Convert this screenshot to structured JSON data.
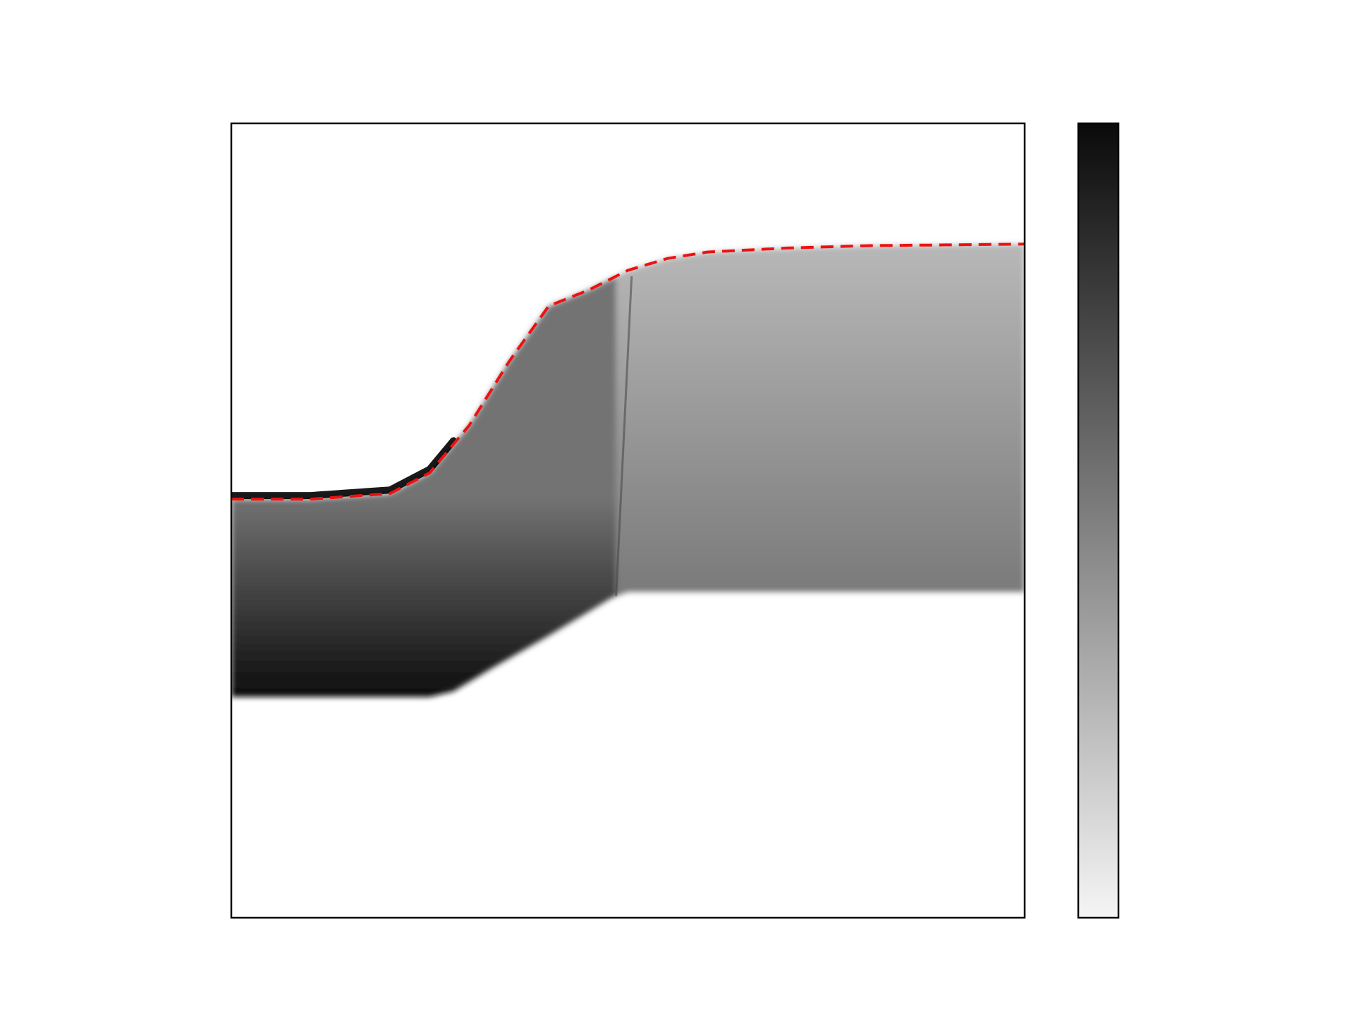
{
  "chart_data": {
    "type": "heatmap",
    "title": "",
    "xlabel": "",
    "ylabel": "",
    "axis_ticks_visible": false,
    "grid": false,
    "colormap": "grey",
    "colorbar": {
      "present": true,
      "tick_labels_visible": false,
      "low_color": "#f5f5f5",
      "high_color": "#0a0a0a"
    },
    "x_range": [
      0,
      1
    ],
    "y_range": [
      0,
      1
    ],
    "boundary_curve": {
      "color": "#ee1111",
      "style": "dashed",
      "x": [
        0.0,
        0.1,
        0.2,
        0.25,
        0.3,
        0.35,
        0.4,
        0.45,
        0.5,
        0.55,
        0.6,
        0.7,
        0.8,
        0.9,
        1.0
      ],
      "y": [
        0.527,
        0.527,
        0.534,
        0.56,
        0.62,
        0.7,
        0.77,
        0.79,
        0.815,
        0.83,
        0.838,
        0.843,
        0.846,
        0.847,
        0.848
      ]
    },
    "band_lower_edge": {
      "x": [
        0.0,
        0.25,
        0.28,
        0.33,
        0.4,
        0.48,
        0.5,
        0.6,
        0.75,
        1.0
      ],
      "y": [
        0.278,
        0.278,
        0.285,
        0.315,
        0.355,
        0.403,
        0.41,
        0.41,
        0.41,
        0.41
      ]
    },
    "shock_x": 0.485,
    "intensity": {
      "left_region_top": 0.55,
      "left_region_bottom": 0.95,
      "right_region_top": 0.28,
      "right_region_bottom": 0.52,
      "crest_near_boundary": 1.0
    }
  }
}
